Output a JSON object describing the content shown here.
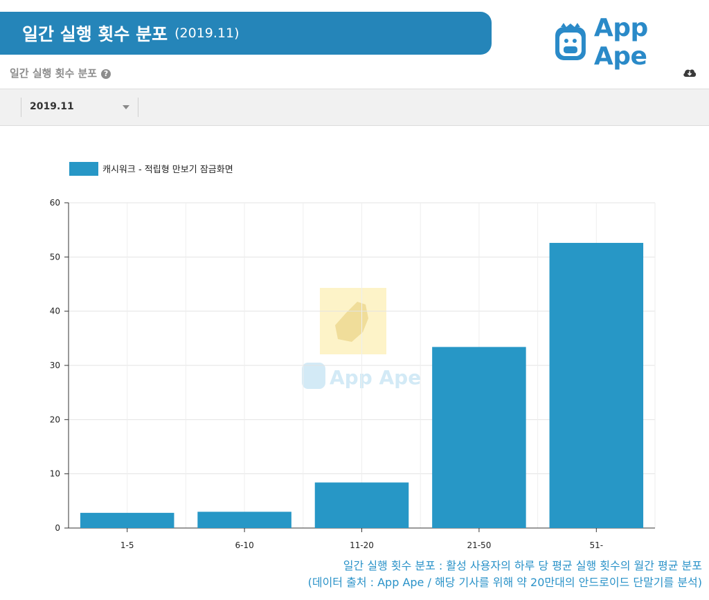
{
  "header": {
    "title": "일간 실행 횟수 분포",
    "period": "(2019.11)",
    "logo_text": "App Ape"
  },
  "panel": {
    "title": "일간 실행 횟수 분포",
    "help_glyph": "?",
    "filter_value": "2019.11",
    "icons": [
      "help-icon",
      "cloud-download-icon",
      "chevron-down-icon"
    ]
  },
  "watermark": {
    "text": "App Ape"
  },
  "footnote": {
    "line1": "일간 실행 횟수 분포 : 활성 사용자의 하루 당 평균 실행 횟수의 월간 평균 분포",
    "line2": "(데이터 출처 : App Ape / 해당 기사를 위해 약 20만대의 안드로이드 단말기를 분석)"
  },
  "colors": {
    "banner": "#2585b9",
    "bar": "#2797c6",
    "accent_text": "#2a92c8"
  },
  "chart_data": {
    "type": "bar",
    "categories": [
      "1-5",
      "6-10",
      "11-20",
      "21-50",
      "51-"
    ],
    "series": [
      {
        "name": "캐시워크 - 적립형 만보기 잠금화면",
        "values": [
          2.8,
          3.0,
          8.4,
          33.4,
          52.6
        ]
      }
    ],
    "yticks": [
      "0",
      "10",
      "20",
      "30",
      "40",
      "50",
      "60"
    ],
    "ylim": [
      0,
      60
    ],
    "grid": true,
    "legend": "top-left"
  }
}
